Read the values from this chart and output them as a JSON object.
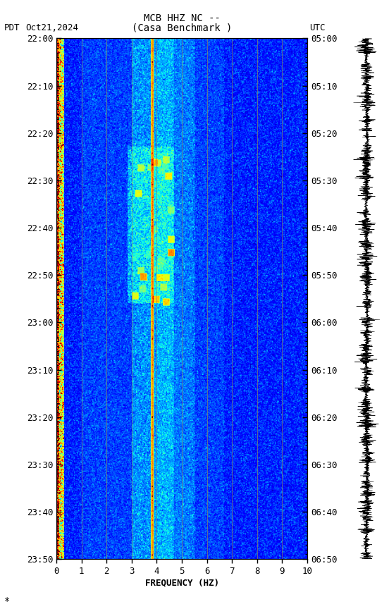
{
  "title_line1": "MCB HHZ NC --",
  "title_line2": "(Casa Benchmark )",
  "label_left": "PDT",
  "label_date": "Oct21,2024",
  "label_right": "UTC",
  "time_ticks_pdt": [
    "22:00",
    "22:10",
    "22:20",
    "22:30",
    "22:40",
    "22:50",
    "23:00",
    "23:10",
    "23:20",
    "23:30",
    "23:40",
    "23:50"
  ],
  "time_ticks_utc": [
    "05:00",
    "05:10",
    "05:20",
    "05:30",
    "05:40",
    "05:50",
    "06:00",
    "06:10",
    "06:20",
    "06:30",
    "06:40",
    "06:50"
  ],
  "freq_min": 0,
  "freq_max": 10,
  "freq_ticks": [
    0,
    1,
    2,
    3,
    4,
    5,
    6,
    7,
    8,
    9,
    10
  ],
  "xlabel": "FREQUENCY (HZ)",
  "colormap": "jet",
  "seed": 42,
  "figsize": [
    5.52,
    8.64
  ],
  "dpi": 100
}
